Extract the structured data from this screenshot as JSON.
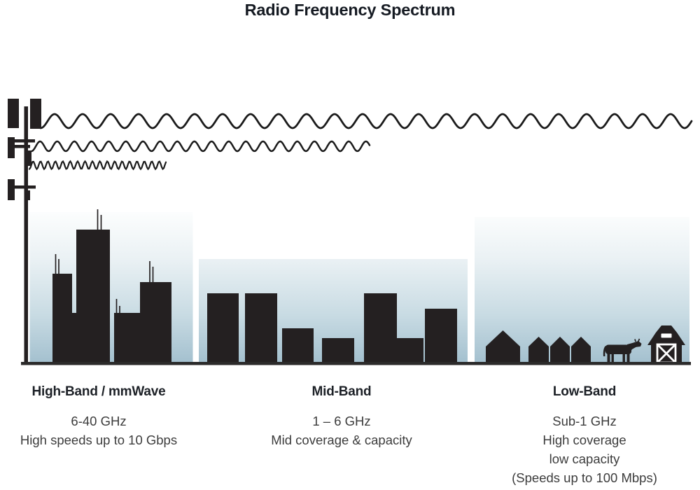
{
  "title": "Radio Frequency Spectrum",
  "bands": [
    {
      "name": "High-Band / mmWave",
      "frequency": "6-40 GHz",
      "details": [
        "High speeds up to 10 Gbps"
      ]
    },
    {
      "name": "Mid-Band",
      "frequency": "1 – 6 GHz",
      "details": [
        "Mid coverage & capacity"
      ]
    },
    {
      "name": "Low-Band",
      "frequency": "Sub-1 GHz",
      "details": [
        "High coverage",
        "low capacity",
        "(Speeds up to 100 Mbps)"
      ]
    }
  ],
  "colors": {
    "silhouette": "#242021",
    "sky_top": "#ffffff",
    "sky_bottom": "#a2bfce",
    "heading_text": "#1d2127",
    "body_text": "#3c3c3c",
    "wave_stroke": "#1b1b1b"
  },
  "icons": [
    "cell-tower-icon",
    "low-band-wave-icon",
    "mid-band-wave-icon",
    "high-band-wave-icon",
    "skyscrapers-icon",
    "midrise-buildings-icon",
    "houses-icon",
    "cow-icon",
    "barn-icon"
  ]
}
